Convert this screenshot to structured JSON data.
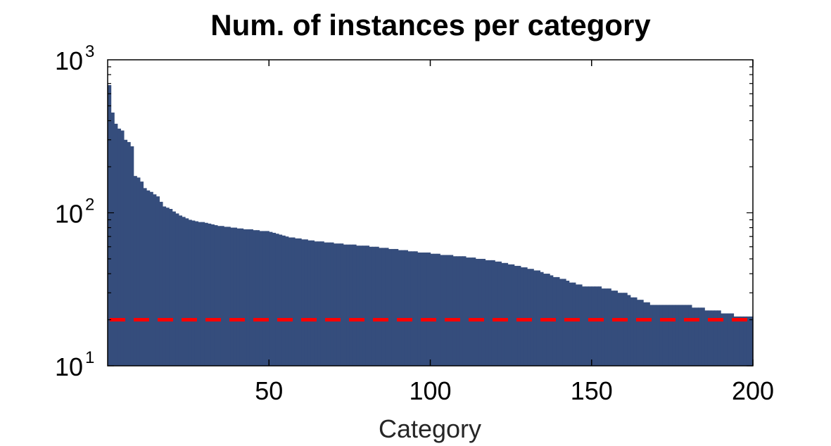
{
  "chart_data": {
    "type": "bar",
    "title": "Num. of instances per category",
    "xlabel": "Category",
    "ylabel": "",
    "xlim": [
      0,
      200
    ],
    "ylim": [
      10,
      1000
    ],
    "yscale": "log",
    "x_ticks": [
      "50",
      "100",
      "150",
      "200"
    ],
    "x_tick_values": [
      50,
      100,
      150,
      200
    ],
    "y_ticks": [
      {
        "base": "10",
        "exp": "1"
      },
      {
        "base": "10",
        "exp": "2"
      },
      {
        "base": "10",
        "exp": "3"
      }
    ],
    "y_tick_values": [
      10,
      100,
      1000
    ],
    "grid": false,
    "bar_color": "#354d7c",
    "threshold_line": {
      "value": 20,
      "color": "#ff0000",
      "style": "dashed"
    },
    "categories_range": [
      1,
      200
    ],
    "values": [
      683,
      452,
      382,
      355,
      345,
      300,
      290,
      272,
      174,
      170,
      160,
      145,
      140,
      137,
      132,
      128,
      118,
      110,
      108,
      106,
      102,
      99,
      96,
      94,
      92,
      90,
      89,
      88,
      87,
      87,
      86,
      85,
      84,
      83,
      82,
      82,
      81,
      81,
      80,
      80,
      79,
      79,
      78,
      78,
      78,
      77,
      77,
      76,
      76,
      76,
      75,
      74,
      73,
      72,
      71,
      70,
      69,
      69,
      68,
      68,
      67,
      67,
      66,
      66,
      65,
      65,
      65,
      64,
      64,
      64,
      63,
      63,
      63,
      62,
      62,
      62,
      62,
      61,
      61,
      61,
      61,
      60,
      60,
      60,
      59,
      59,
      59,
      58,
      58,
      58,
      57,
      57,
      57,
      56,
      56,
      56,
      55,
      55,
      55,
      55,
      54,
      54,
      54,
      53,
      53,
      53,
      53,
      52,
      52,
      52,
      52,
      51,
      51,
      51,
      50,
      50,
      50,
      49,
      49,
      49,
      48,
      48,
      47,
      47,
      46,
      46,
      45,
      45,
      44,
      44,
      43,
      43,
      42,
      42,
      41,
      40,
      40,
      39,
      38,
      38,
      37,
      37,
      36,
      35,
      35,
      34,
      34,
      33,
      33,
      33,
      33,
      33,
      33,
      32,
      32,
      32,
      31,
      31,
      30,
      30,
      30,
      29,
      28,
      28,
      27,
      27,
      26,
      26,
      25,
      25,
      25,
      25,
      25,
      25,
      25,
      25,
      25,
      25,
      25,
      25,
      25,
      24,
      24,
      24,
      24,
      23,
      23,
      23,
      23,
      23,
      22,
      22,
      22,
      22,
      21,
      21,
      21,
      21,
      21,
      21
    ]
  }
}
